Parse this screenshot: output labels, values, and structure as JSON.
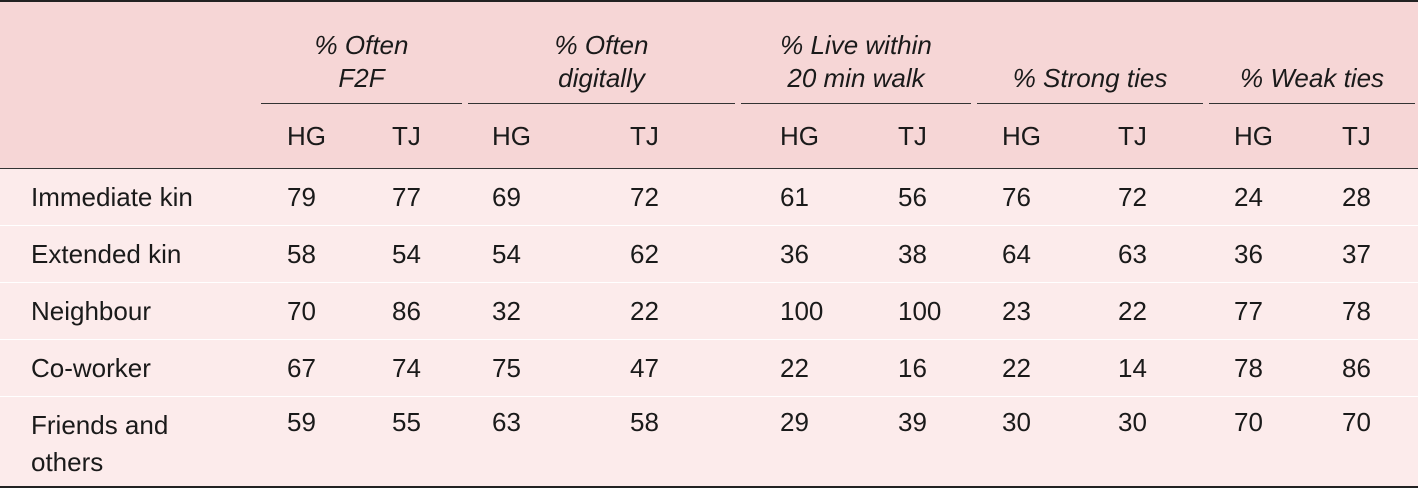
{
  "table": {
    "column_groups": [
      {
        "label": "% Often F2F",
        "subcolumns": [
          "HG",
          "TJ"
        ]
      },
      {
        "label": "% Often digitally",
        "subcolumns": [
          "HG",
          "TJ"
        ]
      },
      {
        "label": "% Live within 20 min walk",
        "subcolumns": [
          "HG",
          "TJ"
        ]
      },
      {
        "label": "% Strong ties",
        "subcolumns": [
          "HG",
          "TJ"
        ]
      },
      {
        "label": "% Weak ties",
        "subcolumns": [
          "HG",
          "TJ"
        ]
      }
    ],
    "rows": [
      {
        "label": "Immediate kin",
        "values": [
          79,
          77,
          69,
          72,
          61,
          56,
          76,
          72,
          24,
          28
        ]
      },
      {
        "label": "Extended kin",
        "values": [
          58,
          54,
          54,
          62,
          36,
          38,
          64,
          63,
          36,
          37
        ]
      },
      {
        "label": "Neighbour",
        "values": [
          70,
          86,
          32,
          22,
          100,
          100,
          23,
          22,
          77,
          78
        ]
      },
      {
        "label": "Co-worker",
        "values": [
          67,
          74,
          75,
          47,
          22,
          16,
          22,
          14,
          78,
          86
        ]
      },
      {
        "label": "Friends and others",
        "values": [
          59,
          55,
          63,
          58,
          29,
          39,
          30,
          30,
          70,
          70
        ]
      }
    ]
  }
}
